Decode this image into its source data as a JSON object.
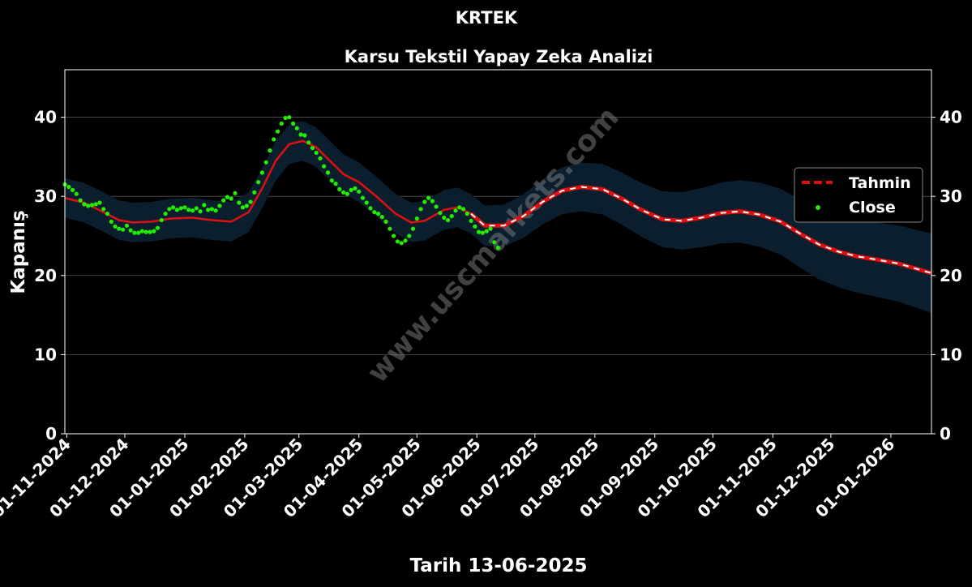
{
  "chart_data": {
    "type": "line",
    "title": "KRTEK",
    "subtitle": "Karsu Tekstil Yapay Zeka Analizi",
    "xlabel": "Tarih 13-06-2025",
    "ylabel": "Kapanış",
    "ylim": [
      0,
      46
    ],
    "yticks": [
      0,
      10,
      20,
      30,
      40
    ],
    "xlim": [
      "2024-10-31",
      "2026-01-22"
    ],
    "xticks": [
      "01-11-2024",
      "01-12-2024",
      "01-01-2025",
      "01-02-2025",
      "01-03-2025",
      "01-04-2025",
      "01-05-2025",
      "01-06-2025",
      "01-07-2025",
      "01-08-2025",
      "01-09-2025",
      "01-10-2025",
      "01-11-2025",
      "01-12-2025",
      "01-01-2026"
    ],
    "grid": "horizontal",
    "watermark": "www.uscmarkets.com",
    "legend": {
      "position": "right",
      "entries": [
        "Tahmin",
        "Close"
      ]
    },
    "colors": {
      "background": "#000000",
      "forecast": "#e01010",
      "close": "#22ee00",
      "band": "#0a1e2e",
      "grid": "#555555",
      "text": "#ffffff",
      "watermark": "#777777"
    },
    "series": [
      {
        "name": "Tahmin",
        "style": "solid-then-dashed",
        "dashed_from": "2025-06-01",
        "points": [
          [
            "2024-10-31",
            29.8
          ],
          [
            "2024-11-10",
            29.2
          ],
          [
            "2024-11-20",
            28.0
          ],
          [
            "2024-11-28",
            27.0
          ],
          [
            "2024-12-05",
            26.7
          ],
          [
            "2024-12-15",
            26.8
          ],
          [
            "2024-12-25",
            27.2
          ],
          [
            "2025-01-05",
            27.3
          ],
          [
            "2025-01-15",
            27.0
          ],
          [
            "2025-01-25",
            26.8
          ],
          [
            "2025-02-03",
            28.0
          ],
          [
            "2025-02-10",
            31.0
          ],
          [
            "2025-02-17",
            34.5
          ],
          [
            "2025-02-24",
            36.6
          ],
          [
            "2025-03-03",
            37.0
          ],
          [
            "2025-03-10",
            36.2
          ],
          [
            "2025-03-17",
            34.5
          ],
          [
            "2025-03-24",
            32.8
          ],
          [
            "2025-04-01",
            31.8
          ],
          [
            "2025-04-10",
            30.0
          ],
          [
            "2025-04-20",
            27.8
          ],
          [
            "2025-04-28",
            26.7
          ],
          [
            "2025-05-05",
            26.9
          ],
          [
            "2025-05-15",
            28.3
          ],
          [
            "2025-05-22",
            28.6
          ],
          [
            "2025-05-29",
            27.8
          ],
          [
            "2025-06-05",
            26.3
          ],
          [
            "2025-06-15",
            26.3
          ],
          [
            "2025-06-25",
            27.5
          ],
          [
            "2025-07-05",
            29.3
          ],
          [
            "2025-07-15",
            30.7
          ],
          [
            "2025-07-25",
            31.2
          ],
          [
            "2025-08-05",
            30.9
          ],
          [
            "2025-08-15",
            29.7
          ],
          [
            "2025-08-25",
            28.3
          ],
          [
            "2025-09-05",
            27.1
          ],
          [
            "2025-09-15",
            26.9
          ],
          [
            "2025-09-25",
            27.3
          ],
          [
            "2025-10-05",
            27.9
          ],
          [
            "2025-10-15",
            28.1
          ],
          [
            "2025-10-25",
            27.7
          ],
          [
            "2025-11-05",
            26.8
          ],
          [
            "2025-11-15",
            25.3
          ],
          [
            "2025-11-25",
            23.9
          ],
          [
            "2025-12-05",
            23.0
          ],
          [
            "2025-12-15",
            22.4
          ],
          [
            "2025-12-25",
            22.0
          ],
          [
            "2026-01-05",
            21.5
          ],
          [
            "2026-01-15",
            20.8
          ],
          [
            "2026-01-22",
            20.3
          ]
        ]
      },
      {
        "name": "Close",
        "style": "dots",
        "points": [
          [
            "2024-10-31",
            31.5
          ],
          [
            "2024-11-02",
            31.2
          ],
          [
            "2024-11-04",
            30.8
          ],
          [
            "2024-11-06",
            30.3
          ],
          [
            "2024-11-08",
            29.5
          ],
          [
            "2024-11-10",
            29.0
          ],
          [
            "2024-11-12",
            28.8
          ],
          [
            "2024-11-14",
            28.9
          ],
          [
            "2024-11-16",
            29.0
          ],
          [
            "2024-11-18",
            29.2
          ],
          [
            "2024-11-20",
            28.4
          ],
          [
            "2024-11-22",
            27.8
          ],
          [
            "2024-11-24",
            26.8
          ],
          [
            "2024-11-26",
            26.2
          ],
          [
            "2024-11-28",
            25.9
          ],
          [
            "2024-11-30",
            25.8
          ],
          [
            "2024-12-02",
            26.3
          ],
          [
            "2024-12-04",
            25.7
          ],
          [
            "2024-12-06",
            25.4
          ],
          [
            "2024-12-08",
            25.4
          ],
          [
            "2024-12-10",
            25.6
          ],
          [
            "2024-12-12",
            25.5
          ],
          [
            "2024-12-14",
            25.5
          ],
          [
            "2024-12-16",
            25.6
          ],
          [
            "2024-12-18",
            26.0
          ],
          [
            "2024-12-20",
            27.0
          ],
          [
            "2024-12-22",
            27.8
          ],
          [
            "2024-12-24",
            28.4
          ],
          [
            "2024-12-26",
            28.6
          ],
          [
            "2024-12-28",
            28.3
          ],
          [
            "2024-12-30",
            28.5
          ],
          [
            "2025-01-01",
            28.6
          ],
          [
            "2025-01-03",
            28.3
          ],
          [
            "2025-01-05",
            28.2
          ],
          [
            "2025-01-07",
            28.5
          ],
          [
            "2025-01-09",
            28.1
          ],
          [
            "2025-01-11",
            28.9
          ],
          [
            "2025-01-13",
            28.3
          ],
          [
            "2025-01-15",
            28.4
          ],
          [
            "2025-01-17",
            28.2
          ],
          [
            "2025-01-19",
            28.8
          ],
          [
            "2025-01-21",
            29.5
          ],
          [
            "2025-01-23",
            29.9
          ],
          [
            "2025-01-25",
            29.7
          ],
          [
            "2025-01-27",
            30.4
          ],
          [
            "2025-01-29",
            29.2
          ],
          [
            "2025-01-31",
            28.6
          ],
          [
            "2025-02-02",
            28.8
          ],
          [
            "2025-02-04",
            29.3
          ],
          [
            "2025-02-06",
            30.5
          ],
          [
            "2025-02-08",
            31.8
          ],
          [
            "2025-02-10",
            33.0
          ],
          [
            "2025-02-12",
            34.3
          ],
          [
            "2025-02-14",
            35.8
          ],
          [
            "2025-02-16",
            37.2
          ],
          [
            "2025-02-18",
            38.2
          ],
          [
            "2025-02-20",
            39.2
          ],
          [
            "2025-02-22",
            39.9
          ],
          [
            "2025-02-24",
            40.0
          ],
          [
            "2025-02-26",
            39.2
          ],
          [
            "2025-02-28",
            38.6
          ],
          [
            "2025-03-02",
            37.8
          ],
          [
            "2025-03-04",
            37.7
          ],
          [
            "2025-03-06",
            36.8
          ],
          [
            "2025-03-08",
            36.1
          ],
          [
            "2025-03-10",
            35.5
          ],
          [
            "2025-03-12",
            34.8
          ],
          [
            "2025-03-14",
            33.8
          ],
          [
            "2025-03-16",
            33.0
          ],
          [
            "2025-03-18",
            32.0
          ],
          [
            "2025-03-20",
            31.6
          ],
          [
            "2025-03-22",
            30.9
          ],
          [
            "2025-03-24",
            30.5
          ],
          [
            "2025-03-26",
            30.3
          ],
          [
            "2025-03-28",
            30.8
          ],
          [
            "2025-03-30",
            31.0
          ],
          [
            "2025-04-01",
            30.6
          ],
          [
            "2025-04-03",
            29.8
          ],
          [
            "2025-04-05",
            29.2
          ],
          [
            "2025-04-07",
            28.5
          ],
          [
            "2025-04-09",
            28.0
          ],
          [
            "2025-04-11",
            27.8
          ],
          [
            "2025-04-13",
            27.4
          ],
          [
            "2025-04-15",
            26.8
          ],
          [
            "2025-04-17",
            25.9
          ],
          [
            "2025-04-19",
            25.0
          ],
          [
            "2025-04-21",
            24.3
          ],
          [
            "2025-04-23",
            24.1
          ],
          [
            "2025-04-25",
            24.4
          ],
          [
            "2025-04-27",
            25.0
          ],
          [
            "2025-04-29",
            25.9
          ],
          [
            "2025-05-01",
            27.2
          ],
          [
            "2025-05-03",
            28.4
          ],
          [
            "2025-05-05",
            29.3
          ],
          [
            "2025-05-07",
            29.8
          ],
          [
            "2025-05-09",
            29.4
          ],
          [
            "2025-05-11",
            28.7
          ],
          [
            "2025-05-13",
            27.9
          ],
          [
            "2025-05-15",
            27.3
          ],
          [
            "2025-05-17",
            27.0
          ],
          [
            "2025-05-19",
            27.5
          ],
          [
            "2025-05-21",
            28.2
          ],
          [
            "2025-05-23",
            28.6
          ],
          [
            "2025-05-25",
            28.4
          ],
          [
            "2025-05-27",
            27.8
          ],
          [
            "2025-05-29",
            26.9
          ],
          [
            "2025-05-31",
            26.2
          ],
          [
            "2025-06-02",
            25.5
          ],
          [
            "2025-06-04",
            25.4
          ],
          [
            "2025-06-06",
            25.6
          ],
          [
            "2025-06-08",
            25.9
          ],
          [
            "2025-06-10",
            24.2
          ],
          [
            "2025-06-12",
            23.5
          ]
        ]
      }
    ]
  }
}
